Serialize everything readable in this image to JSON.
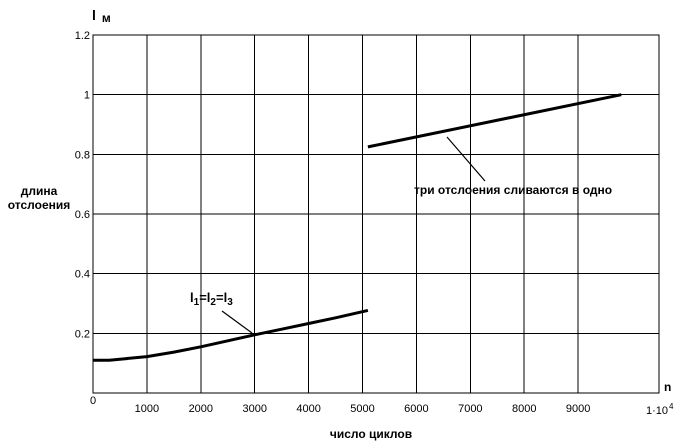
{
  "chart_data": {
    "type": "line",
    "title": "",
    "ylabel_unit": "l",
    "ylabel_unit_sub": "м",
    "ylabel_line1": "длина",
    "ylabel_line2": "отслоения",
    "xlabel": "число циклов",
    "xlabel_letter": "n",
    "x_multiplier": "1·10",
    "x_multiplier_exp": "4",
    "xlim": [
      0,
      10500
    ],
    "ylim": [
      0,
      1.2
    ],
    "xticks": [
      1000,
      2000,
      3000,
      4000,
      5000,
      6000,
      7000,
      8000,
      9000
    ],
    "xtick_labels": [
      "1000",
      "2000",
      "3000",
      "4000",
      "5000",
      "6000",
      "7000",
      "8000",
      "9000"
    ],
    "x_origin_label": "0",
    "yticks": [
      0,
      0.2,
      0.4,
      0.6,
      0.8,
      1,
      1.2
    ],
    "ytick_labels": [
      "0",
      "0.2",
      "0.4",
      "0.6",
      "0.8",
      "1",
      "1.2"
    ],
    "grid": true,
    "series": [
      {
        "x": [
          0,
          300,
          600,
          1000,
          1500,
          2000,
          2500,
          3000,
          3500,
          4000,
          4500,
          5100
        ],
        "y": [
          0.11,
          0.11,
          0.115,
          0.122,
          0.137,
          0.155,
          0.175,
          0.195,
          0.214,
          0.233,
          0.252,
          0.277
        ]
      },
      {
        "x": [
          5100,
          9800
        ],
        "y": [
          0.825,
          1.0
        ]
      }
    ],
    "annotations": [
      {
        "l": "l",
        "sub1": "1",
        "sub2": "2",
        "sub3": "3",
        "eq": "="
      },
      {
        "text": "три отслоения сливаются в одно"
      }
    ]
  }
}
